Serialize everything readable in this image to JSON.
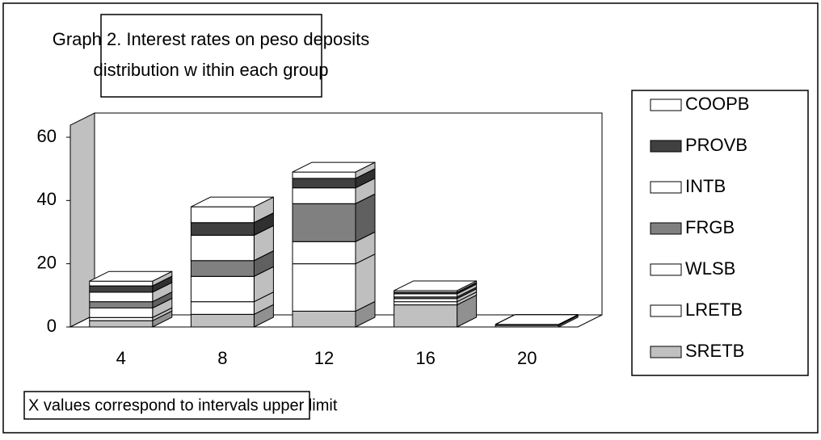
{
  "chart_data": {
    "type": "bar3d-stacked",
    "title": [
      "Graph 2. Interest rates on peso deposits",
      "distribution w ithin each group"
    ],
    "annotation": "X values correspond to intervals upper limit",
    "categories": [
      "4",
      "8",
      "12",
      "16",
      "20"
    ],
    "series": [
      {
        "name": "SRETB",
        "color": "#c0c0c0",
        "values": [
          2,
          4,
          5,
          7,
          0.5
        ]
      },
      {
        "name": "LRETB",
        "color": "#ffffff",
        "values": [
          1,
          4,
          15,
          1,
          0.3
        ]
      },
      {
        "name": "WLSB",
        "color": "#ffffff",
        "values": [
          3,
          8,
          7,
          1,
          0
        ]
      },
      {
        "name": "FRGB",
        "color": "#808080",
        "values": [
          2,
          5,
          12,
          0.5,
          0
        ]
      },
      {
        "name": "INTB",
        "color": "#ffffff",
        "values": [
          3,
          8,
          5,
          1,
          0
        ]
      },
      {
        "name": "PROVB",
        "color": "#404040",
        "values": [
          2,
          4,
          3,
          0.5,
          0
        ]
      },
      {
        "name": "COOPB",
        "color": "#ffffff",
        "values": [
          1.5,
          5,
          2,
          0.5,
          0
        ]
      }
    ],
    "legend_order": "reverse",
    "ylim": [
      0,
      60
    ],
    "yticks": [
      0,
      20,
      40,
      60
    ],
    "grid": false
  }
}
